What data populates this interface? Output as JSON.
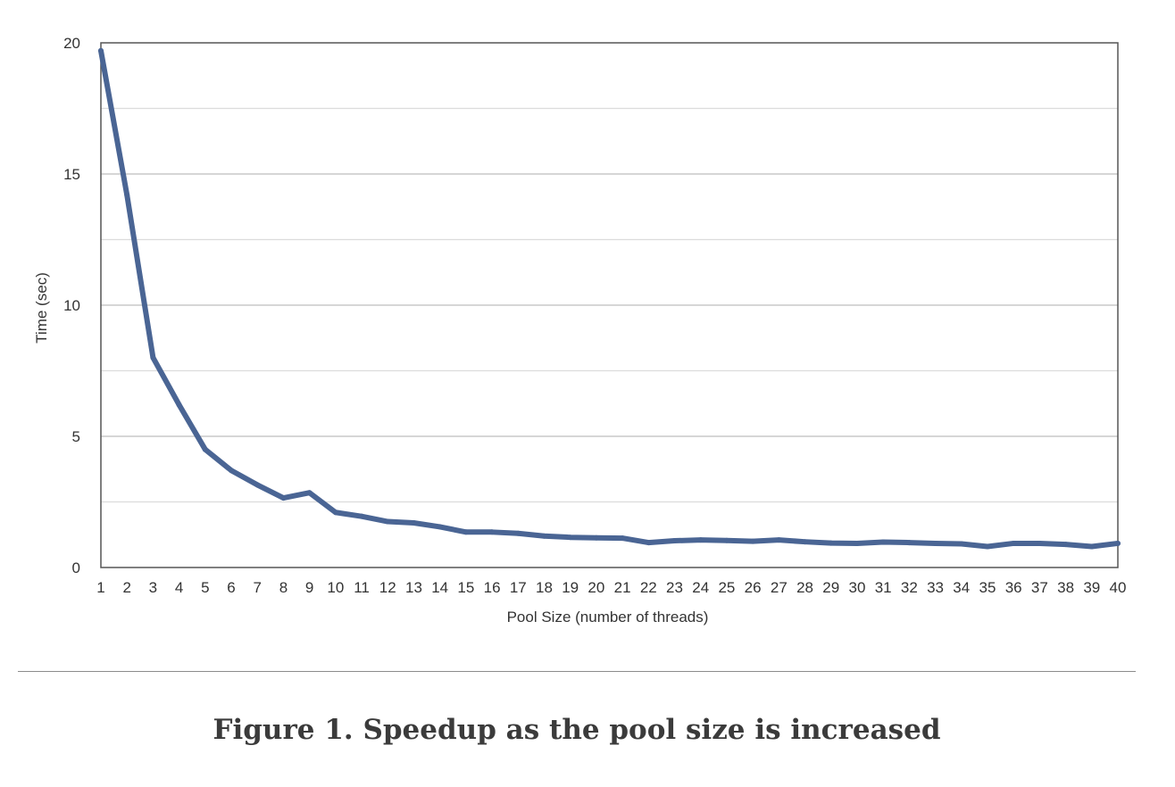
{
  "figure": {
    "caption": "Figure 1. Speedup as the pool size is increased"
  },
  "chart_data": {
    "type": "line",
    "title": "",
    "xlabel": "Pool Size (number of threads)",
    "ylabel": "Time (sec)",
    "ylim": [
      0,
      20
    ],
    "yticks": [
      0,
      5,
      10,
      15,
      20
    ],
    "grid": true,
    "legend": "none",
    "line_color": "#4a6594",
    "x": [
      1,
      2,
      3,
      4,
      5,
      6,
      7,
      8,
      9,
      10,
      11,
      12,
      13,
      14,
      15,
      16,
      17,
      18,
      19,
      20,
      21,
      22,
      23,
      24,
      25,
      26,
      27,
      28,
      29,
      30,
      31,
      32,
      33,
      34,
      35,
      36,
      37,
      38,
      39,
      40
    ],
    "series": [
      {
        "values": [
          19.7,
          14.2,
          8.0,
          6.2,
          4.5,
          3.7,
          3.15,
          2.65,
          2.85,
          2.1,
          1.95,
          1.75,
          1.7,
          1.55,
          1.35,
          1.35,
          1.3,
          1.2,
          1.15,
          1.13,
          1.12,
          0.95,
          1.02,
          1.05,
          1.03,
          1.0,
          1.05,
          0.98,
          0.93,
          0.92,
          0.97,
          0.95,
          0.92,
          0.9,
          0.8,
          0.92,
          0.92,
          0.88,
          0.8,
          0.92
        ]
      }
    ]
  }
}
